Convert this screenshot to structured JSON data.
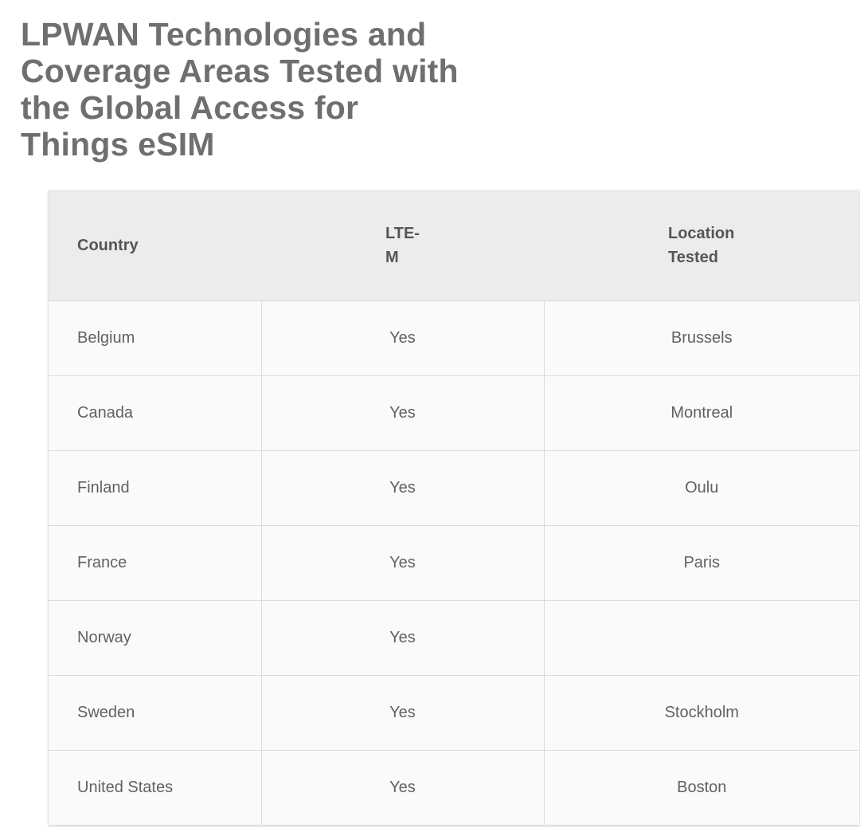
{
  "title": "LPWAN Technologies and Coverage Areas Tested with the Global Access for Things eSIM",
  "table": {
    "headers": {
      "country": "Country",
      "ltem": "LTE-M",
      "location": "Location Tested"
    },
    "rows": [
      {
        "country": "Belgium",
        "ltem": "Yes",
        "location": "Brussels"
      },
      {
        "country": "Canada",
        "ltem": "Yes",
        "location": "Montreal"
      },
      {
        "country": "Finland",
        "ltem": "Yes",
        "location": "Oulu"
      },
      {
        "country": "France",
        "ltem": "Yes",
        "location": "Paris"
      },
      {
        "country": "Norway",
        "ltem": "Yes",
        "location": ""
      },
      {
        "country": "Sweden",
        "ltem": "Yes",
        "location": "Stockholm"
      },
      {
        "country": "United States",
        "ltem": "Yes",
        "location": "Boston"
      }
    ]
  }
}
